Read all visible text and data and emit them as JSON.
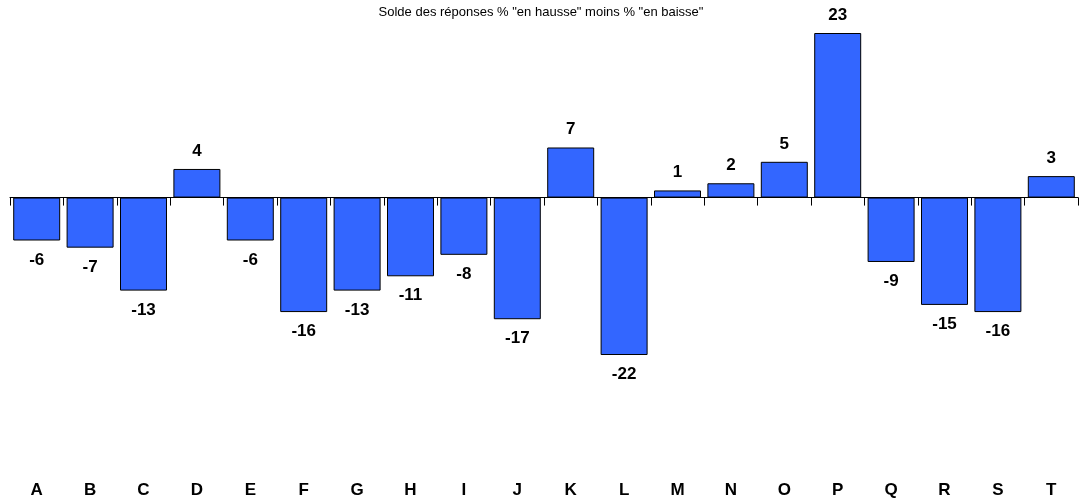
{
  "chart_data": {
    "type": "bar",
    "title": "Solde des réponses % \"en hausse\" moins % \"en baisse\"",
    "categories": [
      "A",
      "B",
      "C",
      "D",
      "E",
      "F",
      "G",
      "H",
      "I",
      "J",
      "K",
      "L",
      "M",
      "N",
      "O",
      "P",
      "Q",
      "R",
      "S",
      "T"
    ],
    "values": [
      -6,
      -7,
      -13,
      4,
      -6,
      -16,
      -13,
      -11,
      -8,
      -17,
      7,
      -22,
      1,
      2,
      5,
      23,
      -9,
      -15,
      -16,
      3
    ],
    "color": "#3366ff",
    "data_labels": true
  }
}
